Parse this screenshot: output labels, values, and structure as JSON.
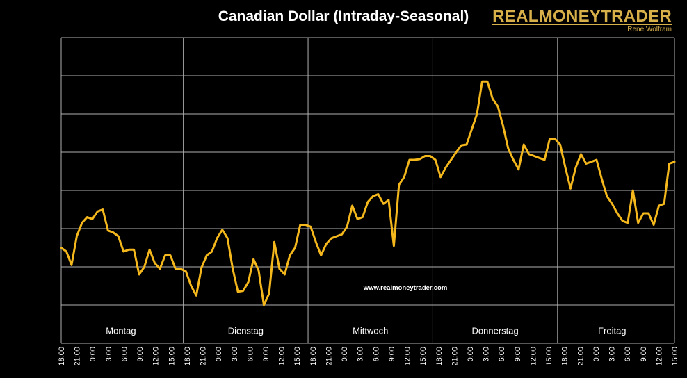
{
  "chart_data": {
    "type": "line",
    "title": "Canadian Dollar (Intraday-Seasonal)",
    "watermark": "www.realmoneytrader.com",
    "line_color": "#f5b81c",
    "grid_color": "#b0b0b0",
    "background": "#000000",
    "yticks": [
      0,
      1,
      2,
      3,
      4,
      5,
      6,
      7,
      8
    ],
    "ylim": [
      0,
      8
    ],
    "days": [
      {
        "label": "Montag",
        "start": 0,
        "end": 23
      },
      {
        "label": "Dienstag",
        "start": 24,
        "end": 47
      },
      {
        "label": "Mittwoch",
        "start": 48,
        "end": 71
      },
      {
        "label": "Donnerstag",
        "start": 72,
        "end": 95
      },
      {
        "label": "Freitag",
        "start": 96,
        "end": 116
      }
    ],
    "day_boundaries": [
      23.5,
      47.5,
      71.5,
      95.5
    ],
    "x_labels": [
      "18:00",
      "21:00",
      "0:00",
      "3:00",
      "6:00",
      "9:00",
      "12:00",
      "15:00",
      "18:00",
      "21:00",
      "0:00",
      "3:00",
      "6:00",
      "9:00",
      "12:00",
      "15:00",
      "18:00",
      "21:00",
      "0:00",
      "3:00",
      "6:00",
      "9:00",
      "12:00",
      "15:00",
      "18:00",
      "21:00",
      "0:00",
      "3:00",
      "6:00",
      "9:00",
      "12:00",
      "15:00",
      "18:00",
      "21:00",
      "0:00",
      "3:00",
      "6:00",
      "9:00",
      "12:00",
      "15:00"
    ],
    "values": [
      2.5,
      2.4,
      2.05,
      2.8,
      3.15,
      3.3,
      3.25,
      3.45,
      3.5,
      2.95,
      2.9,
      2.8,
      2.4,
      2.45,
      2.45,
      1.8,
      2.0,
      2.45,
      2.1,
      1.95,
      2.3,
      2.3,
      1.95,
      1.95,
      1.88,
      1.5,
      1.25,
      1.98,
      2.3,
      2.4,
      2.75,
      2.97,
      2.75,
      1.95,
      1.35,
      1.37,
      1.6,
      2.2,
      1.9,
      1.0,
      1.3,
      2.65,
      1.95,
      1.8,
      2.3,
      2.5,
      3.1,
      3.1,
      3.05,
      2.65,
      2.3,
      2.6,
      2.75,
      2.8,
      2.85,
      3.05,
      3.6,
      3.25,
      3.3,
      3.7,
      3.85,
      3.9,
      3.65,
      3.75,
      2.55,
      4.15,
      4.35,
      4.8,
      4.8,
      4.82,
      4.9,
      4.9,
      4.8,
      4.35,
      4.6,
      4.8,
      5.0,
      5.18,
      5.2,
      5.6,
      6.0,
      6.85,
      6.85,
      6.4,
      6.2,
      5.7,
      5.1,
      4.8,
      4.55,
      5.2,
      4.95,
      4.9,
      4.85,
      4.8,
      5.35,
      5.35,
      5.2,
      4.6,
      4.05,
      4.6,
      4.95,
      4.7,
      4.75,
      4.8,
      4.3,
      3.85,
      3.65,
      3.4,
      3.2,
      3.15,
      4.0,
      3.15,
      3.4,
      3.4,
      3.1,
      3.6,
      3.65,
      4.7,
      4.75
    ]
  }
}
